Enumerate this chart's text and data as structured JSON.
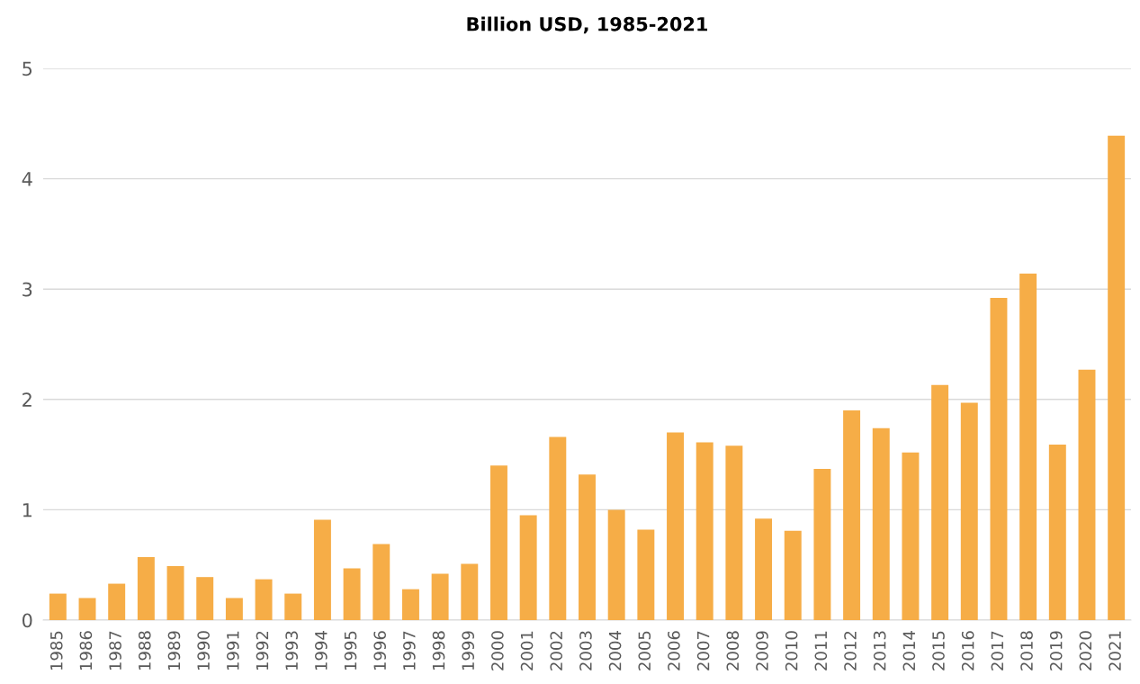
{
  "chart_data": {
    "type": "bar",
    "title": "Billion USD, 1985-2021",
    "categories": [
      "1985",
      "1986",
      "1987",
      "1988",
      "1989",
      "1990",
      "1991",
      "1992",
      "1993",
      "1994",
      "1995",
      "1996",
      "1997",
      "1998",
      "1999",
      "2000",
      "2001",
      "2002",
      "2003",
      "2004",
      "2005",
      "2006",
      "2007",
      "2008",
      "2009",
      "2010",
      "2011",
      "2012",
      "2013",
      "2014",
      "2015",
      "2016",
      "2017",
      "2018",
      "2019",
      "2020",
      "2021"
    ],
    "values": [
      0.24,
      0.2,
      0.33,
      0.57,
      0.49,
      0.39,
      0.2,
      0.37,
      0.24,
      0.91,
      0.47,
      0.69,
      0.28,
      0.42,
      0.51,
      1.4,
      0.95,
      1.66,
      1.32,
      1.0,
      0.82,
      1.7,
      1.61,
      1.58,
      0.92,
      0.81,
      1.37,
      1.9,
      1.74,
      1.52,
      2.13,
      1.97,
      2.92,
      3.14,
      1.59,
      2.27,
      4.39
    ],
    "color": "#f6ad47",
    "ylim": [
      0,
      5
    ],
    "yticks": [
      0,
      1,
      2,
      3,
      4,
      5
    ],
    "grid": "y"
  }
}
